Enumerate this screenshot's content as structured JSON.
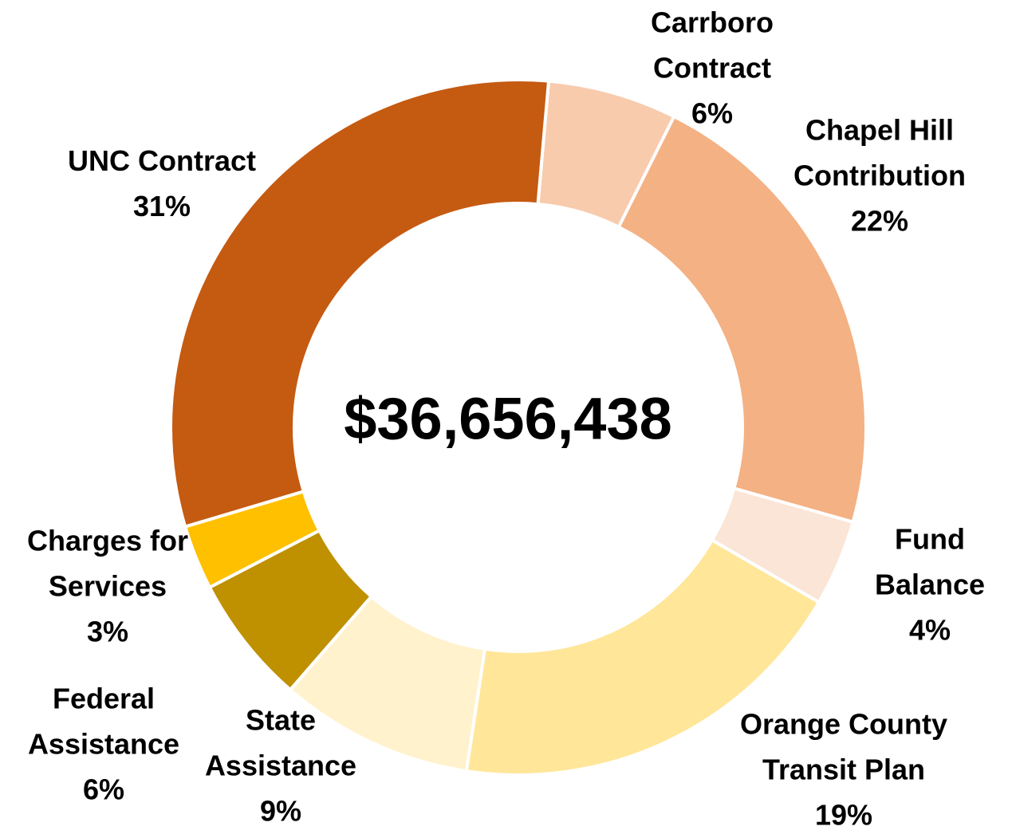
{
  "chart_data": {
    "type": "donut",
    "center_label": "$36,656,438",
    "categories": [
      "Carrboro Contract",
      "Chapel Hill Contribution",
      "Fund Balance",
      "Orange County Transit Plan",
      "State Assistance",
      "Federal Assistance",
      "Charges for Services",
      "UNC Contract"
    ],
    "values": [
      6,
      22,
      4,
      19,
      9,
      6,
      3,
      31
    ],
    "value_labels": [
      "6%",
      "22%",
      "4%",
      "19%",
      "9%",
      "6%",
      "3%",
      "31%"
    ],
    "colors": [
      "#F8CBAD",
      "#F4B183",
      "#FBE5D6",
      "#FFE699",
      "#FFF2CC",
      "#BF9000",
      "#FFC000",
      "#C55A11"
    ]
  }
}
